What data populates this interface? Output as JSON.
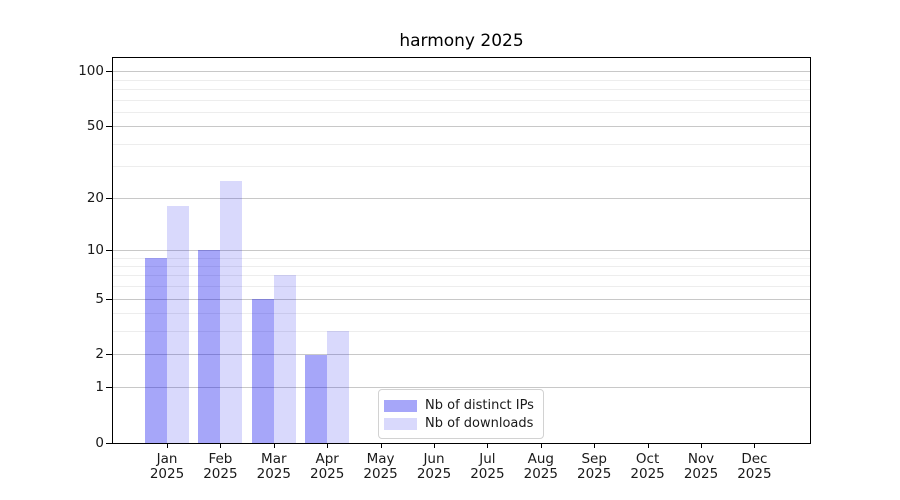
{
  "chart_data": {
    "type": "bar",
    "title": "harmony 2025",
    "categories": [
      "Jan 2025",
      "Feb 2025",
      "Mar 2025",
      "Apr 2025",
      "May 2025",
      "Jun 2025",
      "Jul 2025",
      "Aug 2025",
      "Sep 2025",
      "Oct 2025",
      "Nov 2025",
      "Dec 2025"
    ],
    "x_tick_months": [
      "Jan",
      "Feb",
      "Mar",
      "Apr",
      "May",
      "Jun",
      "Jul",
      "Aug",
      "Sep",
      "Oct",
      "Nov",
      "Dec"
    ],
    "x_tick_year": "2025",
    "series": [
      {
        "name": "Nb of distinct IPs",
        "color": "#0000ee59",
        "values": [
          9,
          10,
          5,
          2,
          0,
          0,
          0,
          0,
          0,
          0,
          0,
          0
        ]
      },
      {
        "name": "Nb of downloads",
        "color": "#0000ee26",
        "values": [
          18,
          25,
          7,
          3,
          0,
          0,
          0,
          0,
          0,
          0,
          0,
          0
        ]
      }
    ],
    "xlabel": "",
    "ylabel": "",
    "y_axis": {
      "scale": "log(1+y)",
      "ylim": [
        0,
        118
      ],
      "major_ticks": [
        100,
        50,
        20,
        10,
        5,
        2,
        1,
        0
      ],
      "minor_gridlines": [
        90,
        80,
        70,
        60,
        40,
        30,
        9,
        8,
        7,
        6,
        4,
        3
      ]
    },
    "grid": true,
    "legend": {
      "position": "lower center",
      "entries": [
        "Nb of distinct IPs",
        "Nb of downloads"
      ]
    },
    "colors": {
      "grid_major": "#c8c8c8",
      "grid_minor": "#ededed",
      "spine": "#000000",
      "text": "#1a1a1a",
      "legend_border": "#d2d2d2"
    }
  }
}
